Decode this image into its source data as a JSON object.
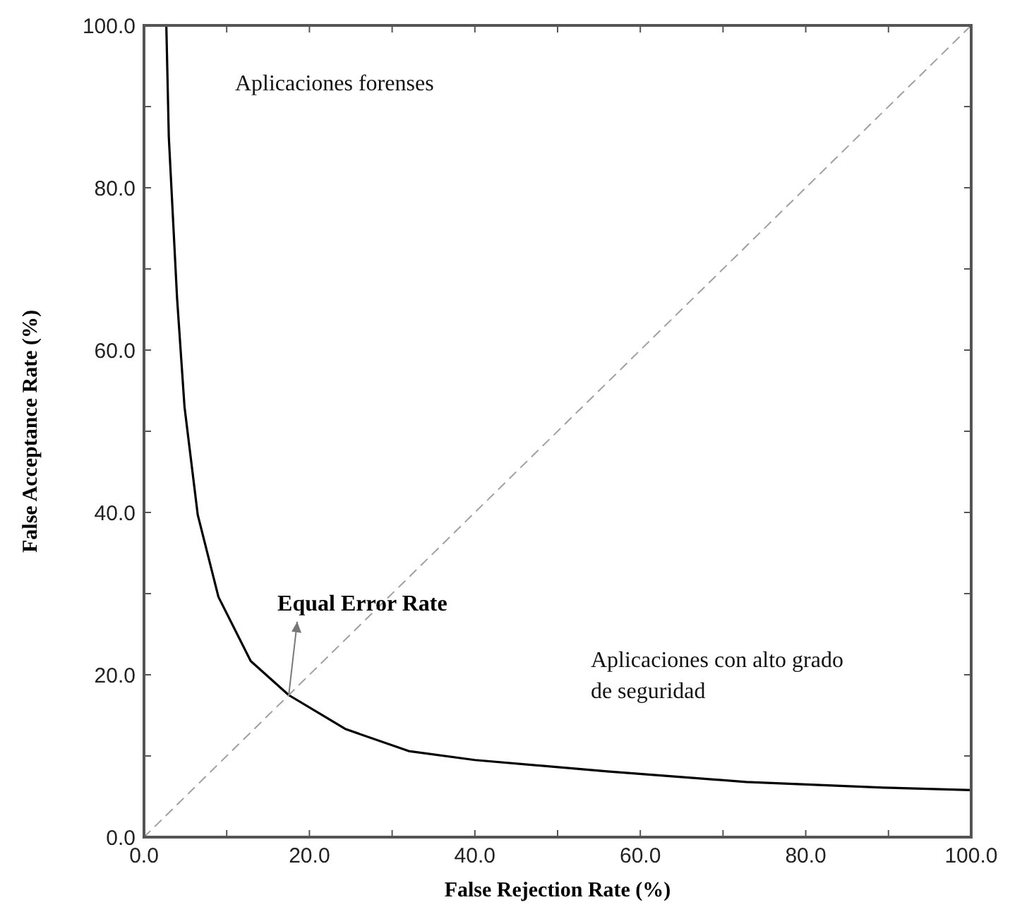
{
  "chart_data": {
    "type": "line",
    "xlabel": "False Rejection Rate (%)",
    "ylabel": "False Acceptance Rate (%)",
    "xlim": [
      0,
      100
    ],
    "ylim": [
      0,
      100
    ],
    "xticks": [
      {
        "value": 0,
        "label": "0.0"
      },
      {
        "value": 10,
        "label": null
      },
      {
        "value": 20,
        "label": "20.0"
      },
      {
        "value": 30,
        "label": null
      },
      {
        "value": 40,
        "label": "40.0"
      },
      {
        "value": 50,
        "label": null
      },
      {
        "value": 60,
        "label": "60.0"
      },
      {
        "value": 70,
        "label": null
      },
      {
        "value": 80,
        "label": "80.0"
      },
      {
        "value": 90,
        "label": null
      },
      {
        "value": 100,
        "label": "100.0"
      }
    ],
    "yticks": [
      {
        "value": 0,
        "label": "0.0"
      },
      {
        "value": 10,
        "label": null
      },
      {
        "value": 20,
        "label": "20.0"
      },
      {
        "value": 30,
        "label": null
      },
      {
        "value": 40,
        "label": "40.0"
      },
      {
        "value": 50,
        "label": null
      },
      {
        "value": 60,
        "label": "60.0"
      },
      {
        "value": 70,
        "label": null
      },
      {
        "value": 80,
        "label": "80.0"
      },
      {
        "value": 90,
        "label": null
      },
      {
        "value": 100,
        "label": "100.0"
      }
    ],
    "series": [
      {
        "color": "#000000",
        "line_style": "solid",
        "x": [
          2.7,
          3.0,
          4.0,
          4.9,
          6.5,
          9.0,
          12.9,
          17.5,
          24.4,
          32,
          40,
          56,
          72.8,
          89.4,
          100
        ],
        "values": [
          100,
          86.3,
          66.4,
          53,
          39.7,
          29.6,
          21.7,
          17.5,
          13.3,
          10.6,
          9.5,
          8.1,
          6.8,
          6.1,
          5.8
        ]
      },
      {
        "color": "#a0a0a0",
        "line_style": "dashed",
        "x": [
          0,
          100
        ],
        "values": [
          0,
          100
        ]
      }
    ],
    "annotations": [
      "Aplicaciones forenses",
      {
        "text": "Equal Error Rate",
        "x": 17.5,
        "y": 17.5
      },
      "Aplicaciones con alto grado de seguridad"
    ]
  }
}
